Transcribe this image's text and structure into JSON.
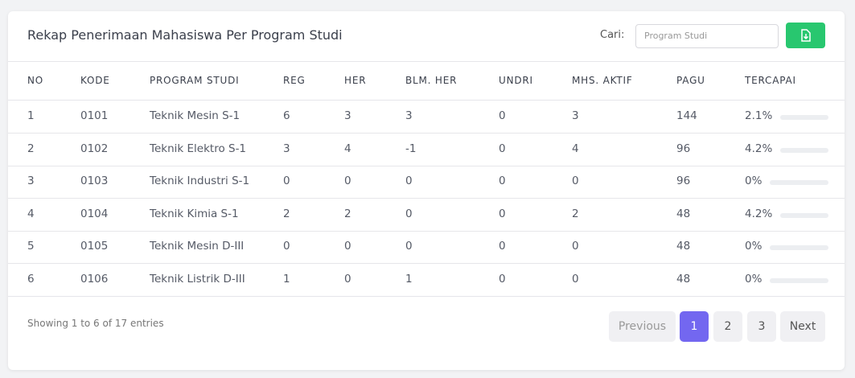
{
  "header": {
    "title": "Rekap Penerimaan Mahasiswa Per Program Studi"
  },
  "search": {
    "label": "Cari:",
    "placeholder": "Program Studi"
  },
  "table": {
    "columns": [
      "NO",
      "KODE",
      "PROGRAM STUDI",
      "REG",
      "HER",
      "BLM. HER",
      "UNDRI",
      "MHS. AKTIF",
      "PAGU",
      "TERCAPAI"
    ],
    "rows": [
      [
        "1",
        "0101",
        "Teknik Mesin S-1",
        "6",
        "3",
        "3",
        "0",
        "3",
        "144",
        "2.1%"
      ],
      [
        "2",
        "0102",
        "Teknik Elektro S-1",
        "3",
        "4",
        "-1",
        "0",
        "4",
        "96",
        "4.2%"
      ],
      [
        "3",
        "0103",
        "Teknik Industri S-1",
        "0",
        "0",
        "0",
        "0",
        "0",
        "96",
        "0%"
      ],
      [
        "4",
        "0104",
        "Teknik Kimia S-1",
        "2",
        "2",
        "0",
        "0",
        "2",
        "48",
        "4.2%"
      ],
      [
        "5",
        "0105",
        "Teknik Mesin D-III",
        "0",
        "0",
        "0",
        "0",
        "0",
        "48",
        "0%"
      ],
      [
        "6",
        "0106",
        "Teknik Listrik D-III",
        "1",
        "0",
        "1",
        "0",
        "0",
        "48",
        "0%"
      ]
    ]
  },
  "footer": {
    "info": "Showing 1 to 6 of 17 entries"
  },
  "pagination": {
    "previous": "Previous",
    "pages": [
      "1",
      "2",
      "3"
    ],
    "next": "Next"
  }
}
